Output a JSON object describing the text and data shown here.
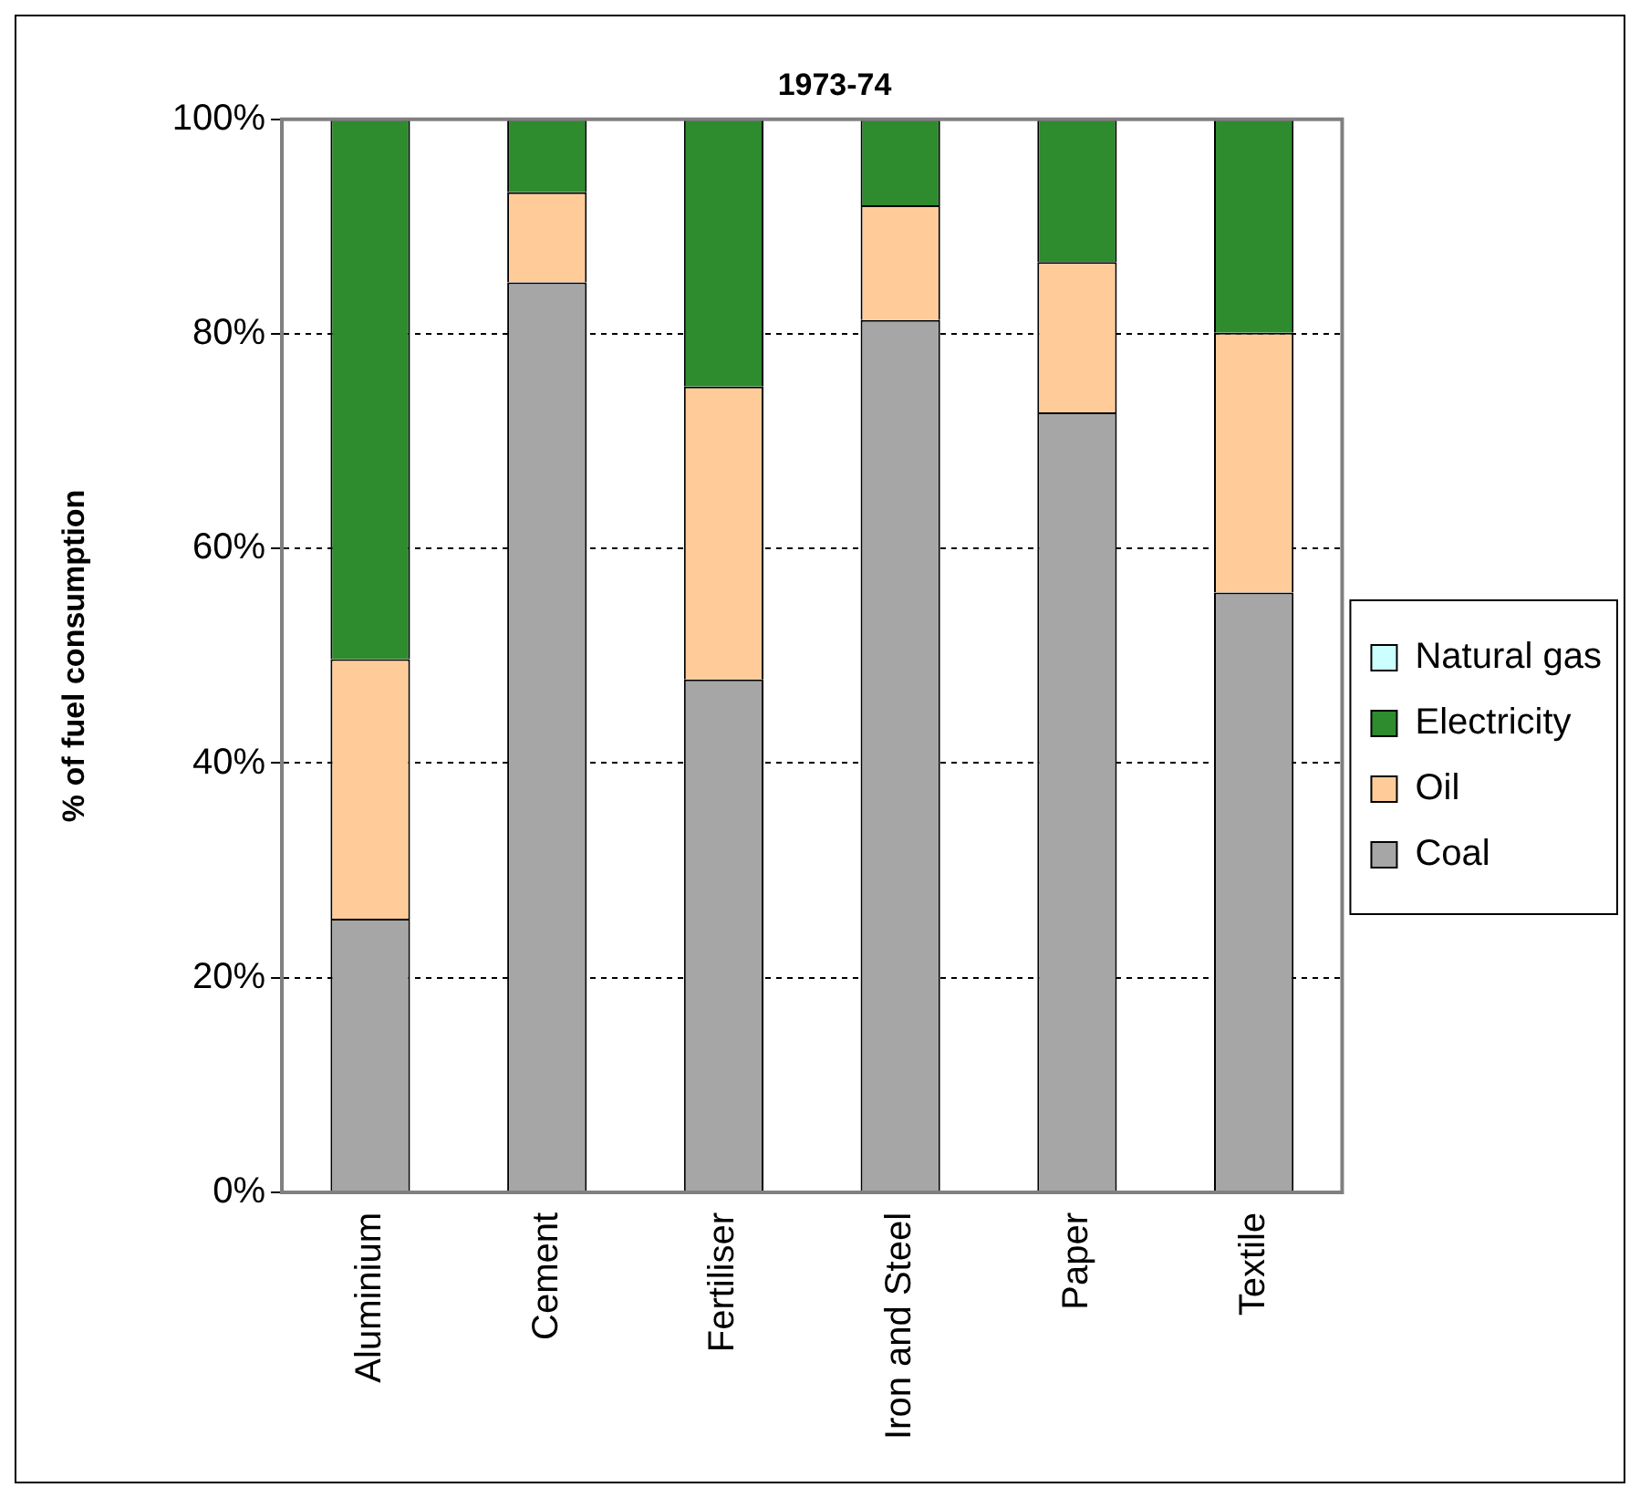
{
  "chart_data": {
    "type": "bar",
    "title": "1973-74",
    "ylabel": "% of fuel consumption",
    "categories": [
      "Aluminium",
      "Cement",
      "Fertiliser",
      "Iron and Steel",
      "Paper",
      "Textile"
    ],
    "stacked": true,
    "series": [
      {
        "name": "Coal",
        "color": "#a6a6a6",
        "values": [
          25.5,
          84.8,
          47.8,
          81.3,
          72.7,
          55.9
        ]
      },
      {
        "name": "Oil",
        "color": "#ffcc99",
        "values": [
          24.2,
          8.4,
          27.3,
          10.7,
          14.0,
          24.2
        ]
      },
      {
        "name": "Electricity",
        "color": "#2e8b2e",
        "values": [
          50.3,
          6.8,
          24.9,
          8.0,
          13.3,
          19.9
        ]
      },
      {
        "name": "Natural gas",
        "color": "#ccffff",
        "values": [
          0,
          0,
          0,
          0,
          0,
          0
        ]
      }
    ],
    "ylim": [
      0,
      100
    ],
    "yticks": [
      {
        "value": 0,
        "label": "0%"
      },
      {
        "value": 20,
        "label": "20%"
      },
      {
        "value": 40,
        "label": "40%"
      },
      {
        "value": 60,
        "label": "60%"
      },
      {
        "value": 80,
        "label": "80%"
      },
      {
        "value": 100,
        "label": "100%"
      }
    ],
    "grid": "y",
    "legend": "right"
  }
}
